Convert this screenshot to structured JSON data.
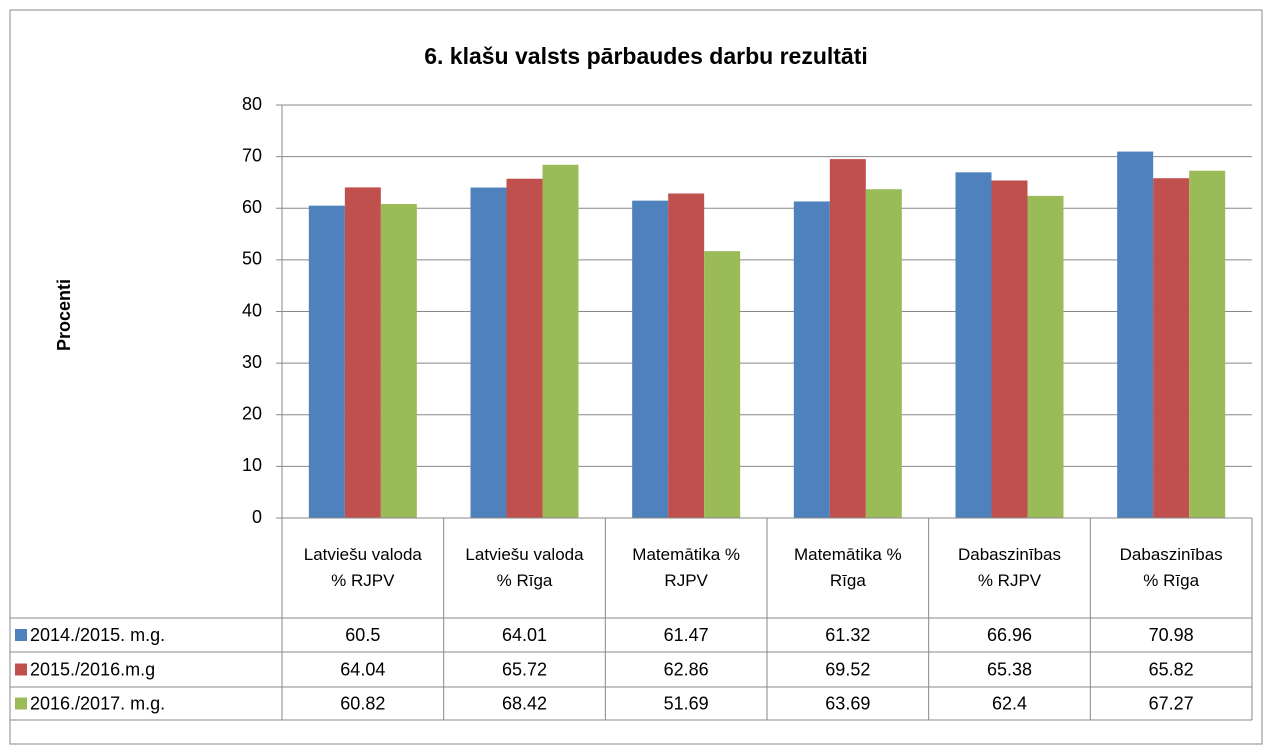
{
  "chart_data": {
    "type": "bar",
    "title": "6. klašu valsts pārbaudes darbu rezultāti",
    "y_label": "Procenti",
    "categories": [
      "Latviešu valoda % RJPV",
      "Latviešu valoda % Rīga",
      "Matemātika % RJPV",
      "Matemātika % Rīga",
      "Dabaszinības % RJPV",
      "Dabaszinības % Rīga"
    ],
    "series": [
      {
        "name": "2014./2015. m.g.",
        "color": "#4f81bd",
        "values": [
          60.5,
          64.01,
          61.47,
          61.32,
          66.96,
          70.98
        ]
      },
      {
        "name": "2015./2016.m.g",
        "color": "#c0504d",
        "values": [
          64.04,
          65.72,
          62.86,
          69.52,
          65.38,
          65.82
        ]
      },
      {
        "name": "2016./2017. m.g.",
        "color": "#9bbb59",
        "values": [
          60.82,
          68.42,
          51.69,
          63.69,
          62.4,
          67.27
        ]
      }
    ],
    "ylim": [
      0,
      80
    ],
    "yticks": [
      0,
      10,
      20,
      30,
      40,
      50,
      60,
      70,
      80
    ],
    "grid": true,
    "data_table": true
  }
}
